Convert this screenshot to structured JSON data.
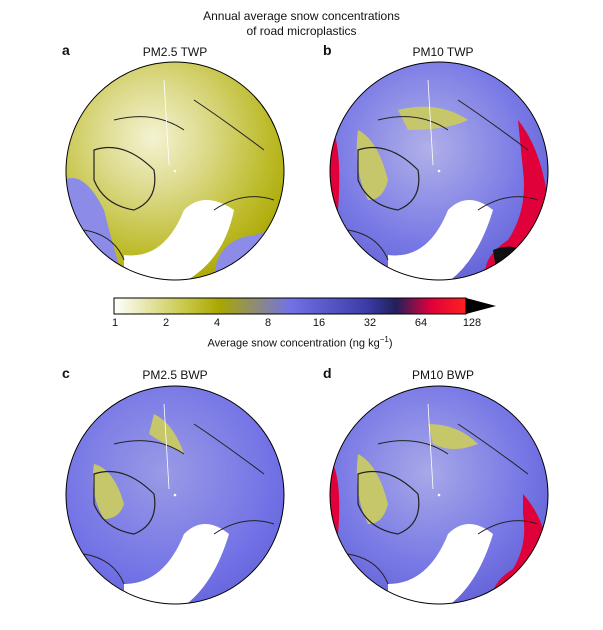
{
  "title_line1": "Annual average snow concentrations",
  "title_line2": "of road microplastics",
  "panels": [
    {
      "letter": "a",
      "title": "PM2.5 TWP",
      "variant": "yellow"
    },
    {
      "letter": "b",
      "title": "PM10 TWP",
      "variant": "blue-red"
    },
    {
      "letter": "c",
      "title": "PM2.5 BWP",
      "variant": "blue"
    },
    {
      "letter": "d",
      "title": "PM10 BWP",
      "variant": "blue-red-light"
    }
  ],
  "colorbar": {
    "ticks": [
      "1",
      "2",
      "4",
      "8",
      "16",
      "32",
      "64",
      "128"
    ],
    "label": "Average snow concentration (ng kg",
    "label_sup": "−1",
    "label_end": ")",
    "colors": [
      "#ffffff",
      "#b8b800",
      "#7070e6",
      "#2a2a80",
      "#e0003a",
      "#000000"
    ]
  }
}
